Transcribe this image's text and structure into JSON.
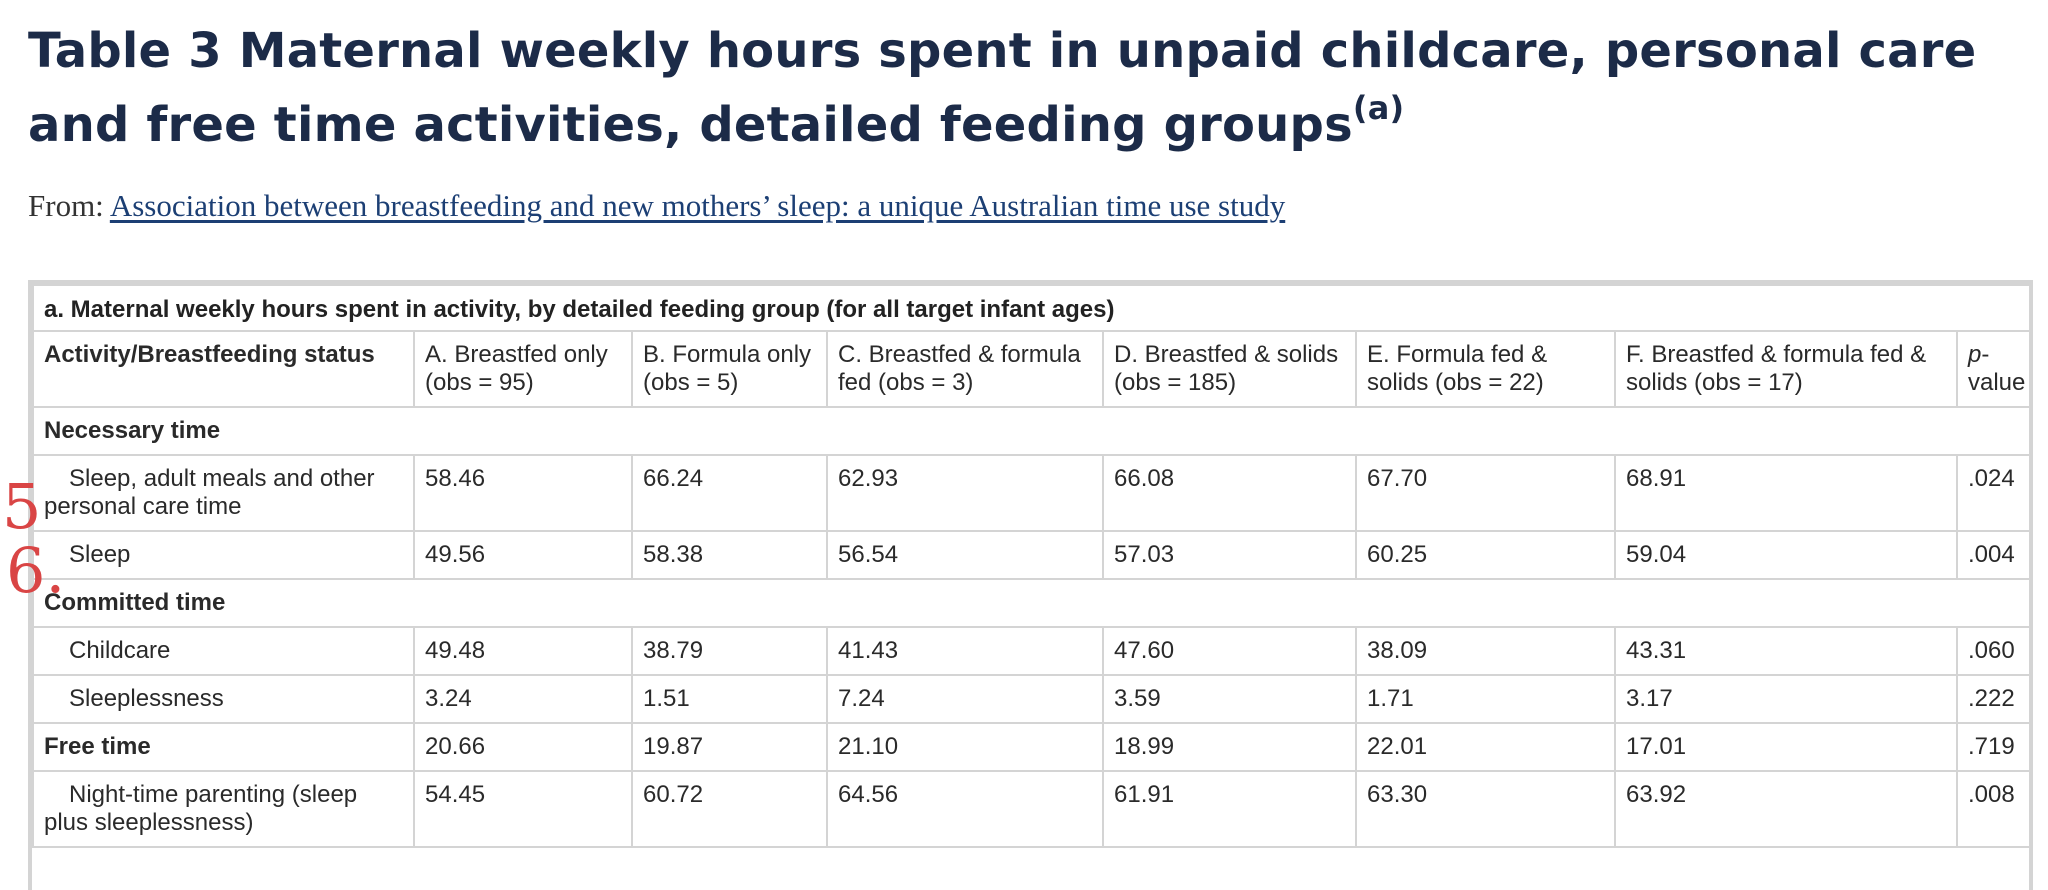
{
  "title": {
    "text": "Table 3 Maternal weekly hours spent in unpaid childcare, personal care and free time activities, detailed feeding groups",
    "superscript": "(a)"
  },
  "from": {
    "label": "From: ",
    "link": "Association between breastfeeding and new mothers’ sleep: a unique Australian time use study"
  },
  "table": {
    "caption": "a. Maternal weekly hours spent in activity, by detailed feeding group (for all target infant ages)",
    "headers": [
      "Activity/Breastfeeding status",
      "A. Breastfed only (obs = 95)",
      "B. Formula only (obs = 5)",
      "C. Breastfed & formula fed (obs = 3)",
      "D. Breastfed & solids (obs = 185)",
      "E. Formula fed & solids (obs = 22)",
      "F. Breastfed & formula fed & solids (obs = 17)"
    ],
    "pvalue_header": {
      "italic": "p",
      "rest": "-value"
    },
    "rows": [
      {
        "kind": "section",
        "label": "Necessary time"
      },
      {
        "kind": "data",
        "label": "Sleep, adult meals and other personal care time",
        "values": [
          "58.46",
          "66.24",
          "62.93",
          "66.08",
          "67.70",
          "68.91",
          ".024"
        ]
      },
      {
        "kind": "data",
        "label": "Sleep",
        "values": [
          "49.56",
          "58.38",
          "56.54",
          "57.03",
          "60.25",
          "59.04",
          ".004"
        ]
      },
      {
        "kind": "section",
        "label": "Committed time"
      },
      {
        "kind": "data",
        "label": "Childcare",
        "values": [
          "49.48",
          "38.79",
          "41.43",
          "47.60",
          "38.09",
          "43.31",
          ".060"
        ]
      },
      {
        "kind": "data",
        "label": "Sleeplessness",
        "values": [
          "3.24",
          "1.51",
          "7.24",
          "3.59",
          "1.71",
          "3.17",
          ".222"
        ]
      },
      {
        "kind": "section-data",
        "label": "Free time",
        "values": [
          "20.66",
          "19.87",
          "21.10",
          "18.99",
          "22.01",
          "17.01",
          ".719"
        ]
      },
      {
        "kind": "data",
        "label": "Night-time parenting (sleep plus sleeplessness)",
        "values": [
          "54.45",
          "60.72",
          "64.56",
          "61.91",
          "63.30",
          "63.92",
          ".008"
        ]
      }
    ]
  },
  "annotations": [
    {
      "text": "5"
    },
    {
      "text": "6."
    }
  ],
  "colors": {
    "title": "#1c2b48",
    "link": "#1c3f74",
    "border": "#d4d4d4",
    "annotation": "#d94545"
  }
}
